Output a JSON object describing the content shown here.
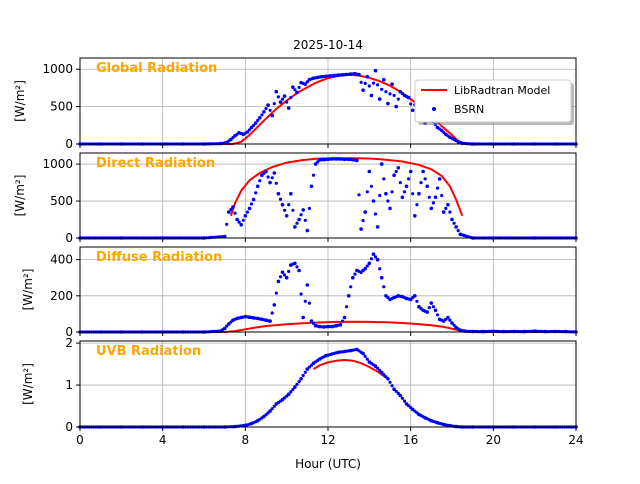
{
  "title": "2025-10-14",
  "xlabel": "Hour (UTC)",
  "colors": {
    "model": "#ff0000",
    "bsrn": "#0000ff",
    "panel_label": "#ffa500",
    "grid": "#b0b0b0"
  },
  "legend": {
    "items": [
      {
        "label": "LibRadtran Model",
        "style": "line",
        "color": "#ff0000"
      },
      {
        "label": "BSRN",
        "style": "dot",
        "color": "#0000ff"
      }
    ],
    "placement": "right of the Global Radiation panel"
  },
  "chart_data": [
    {
      "type": "line",
      "title": "Global Radiation",
      "ylabel": "[W/m²]",
      "xlim": [
        0,
        24
      ],
      "ylim": [
        0,
        1150
      ],
      "xticks": [
        0,
        4,
        8,
        12,
        16,
        20,
        24
      ],
      "yticks": [
        0,
        500,
        1000
      ],
      "grid": true,
      "legend": "right",
      "series": [
        {
          "name": "LibRadtran Model",
          "style": "line",
          "x": [
            0,
            7.4,
            7.8,
            8.2,
            8.6,
            9.0,
            9.5,
            10.0,
            10.5,
            11.0,
            11.5,
            12.0,
            12.5,
            13.0,
            13.5,
            14.0,
            14.5,
            15.0,
            15.5,
            16.0,
            16.5,
            17.0,
            17.5,
            18.0,
            18.3,
            18.6,
            24
          ],
          "y": [
            0,
            0,
            30,
            120,
            230,
            340,
            470,
            580,
            680,
            760,
            830,
            880,
            910,
            925,
            915,
            885,
            840,
            780,
            700,
            600,
            490,
            370,
            240,
            120,
            40,
            0,
            0
          ]
        },
        {
          "name": "BSRN",
          "style": "scatter",
          "x": [
            0,
            1,
            2,
            3,
            4,
            5,
            6,
            6.8,
            7.1,
            7.3,
            7.5,
            7.7,
            7.9,
            8.1,
            8.3,
            8.5,
            8.7,
            8.9,
            9.1,
            9.3,
            9.5,
            9.7,
            9.9,
            10.1,
            10.3,
            10.5,
            10.7,
            10.9,
            11.1,
            11.3,
            11.5,
            11.7,
            11.9,
            12.1,
            12.3,
            12.5,
            12.7,
            12.9,
            13.1,
            13.3,
            13.5,
            13.7,
            13.9,
            14.1,
            14.3,
            14.5,
            14.7,
            14.9,
            15.1,
            15.3,
            15.5,
            15.7,
            15.9,
            16.1,
            16.3,
            16.5,
            16.7,
            16.9,
            17.1,
            17.3,
            17.5,
            17.7,
            17.9,
            18.1,
            18.3,
            18.5,
            19,
            20,
            21,
            22,
            23,
            24
          ],
          "y": [
            0,
            0,
            0,
            0,
            0,
            0,
            0,
            5,
            20,
            60,
            110,
            150,
            130,
            160,
            220,
            280,
            350,
            430,
            520,
            380,
            700,
            560,
            640,
            480,
            760,
            690,
            820,
            800,
            860,
            880,
            890,
            900,
            905,
            910,
            915,
            920,
            925,
            930,
            935,
            940,
            930,
            720,
            900,
            650,
            980,
            600,
            860,
            540,
            800,
            500,
            700,
            650,
            620,
            450,
            600,
            350,
            280,
            420,
            300,
            220,
            180,
            130,
            90,
            60,
            30,
            10,
            0,
            0,
            0,
            0,
            0,
            0
          ]
        }
      ]
    },
    {
      "type": "line",
      "title": "Direct Radiation",
      "ylabel": "[W/m²]",
      "xlim": [
        0,
        24
      ],
      "ylim": [
        0,
        1150
      ],
      "xticks": [
        0,
        4,
        8,
        12,
        16,
        20,
        24
      ],
      "yticks": [
        0,
        500,
        1000
      ],
      "grid": true,
      "series": [
        {
          "name": "LibRadtran Model",
          "style": "line",
          "x": [
            7.3,
            7.5,
            7.8,
            8.2,
            8.7,
            9.3,
            10.0,
            10.8,
            11.6,
            12.4,
            13.2,
            14.0,
            14.8,
            15.6,
            16.4,
            17.0,
            17.5,
            17.9,
            18.2,
            18.5
          ],
          "y": [
            300,
            470,
            640,
            780,
            880,
            960,
            1020,
            1055,
            1075,
            1080,
            1080,
            1075,
            1060,
            1035,
            990,
            930,
            840,
            700,
            520,
            300
          ]
        },
        {
          "name": "BSRN",
          "style": "scatter",
          "x": [
            0,
            2,
            4,
            6,
            7.0,
            7.2,
            7.4,
            7.6,
            7.8,
            8.0,
            8.2,
            8.4,
            8.6,
            8.8,
            9.0,
            9.2,
            9.4,
            9.6,
            9.8,
            10.0,
            10.2,
            10.4,
            10.6,
            10.8,
            11.0,
            11.2,
            11.4,
            11.6,
            11.8,
            12.0,
            12.2,
            12.4,
            12.6,
            12.8,
            13.0,
            13.2,
            13.4,
            13.6,
            13.8,
            14.0,
            14.2,
            14.4,
            14.6,
            14.8,
            15.0,
            15.2,
            15.4,
            15.6,
            15.8,
            16.0,
            16.2,
            16.4,
            16.6,
            16.8,
            17.0,
            17.2,
            17.4,
            17.6,
            17.8,
            18.0,
            18.2,
            18.4,
            19,
            20,
            22,
            24
          ],
          "y": [
            0,
            0,
            0,
            0,
            20,
            350,
            420,
            250,
            180,
            300,
            400,
            520,
            700,
            850,
            900,
            750,
            880,
            600,
            450,
            300,
            600,
            150,
            250,
            380,
            100,
            700,
            1000,
            1060,
            1060,
            1065,
            1070,
            1070,
            1070,
            1065,
            1065,
            1060,
            1050,
            120,
            350,
            900,
            500,
            150,
            1000,
            600,
            400,
            850,
            950,
            550,
            700,
            900,
            300,
            600,
            900,
            700,
            400,
            550,
            800,
            350,
            450,
            250,
            150,
            50,
            0,
            0,
            0,
            0
          ]
        }
      ]
    },
    {
      "type": "line",
      "title": "Diffuse Radiation",
      "ylabel": "[W/m²]",
      "xlim": [
        0,
        24
      ],
      "ylim": [
        0,
        470
      ],
      "xticks": [
        0,
        4,
        8,
        12,
        16,
        20,
        24
      ],
      "yticks": [
        0,
        200,
        400
      ],
      "grid": true,
      "series": [
        {
          "name": "LibRadtran Model",
          "style": "line",
          "x": [
            0,
            7.0,
            7.5,
            8.0,
            8.5,
            9.0,
            10.0,
            11.0,
            12.0,
            13.0,
            14.0,
            15.0,
            16.0,
            17.0,
            17.6,
            18.0,
            18.4,
            18.7,
            24
          ],
          "y": [
            0,
            0,
            5,
            15,
            25,
            33,
            43,
            50,
            55,
            57,
            56,
            53,
            47,
            37,
            28,
            18,
            8,
            0,
            0
          ]
        },
        {
          "name": "BSRN",
          "style": "scatter",
          "x": [
            0,
            1,
            2,
            3,
            4,
            5,
            6,
            6.8,
            7.0,
            7.2,
            7.4,
            7.6,
            7.8,
            8.0,
            8.2,
            8.4,
            8.6,
            8.8,
            9.0,
            9.2,
            9.4,
            9.6,
            9.8,
            10.0,
            10.2,
            10.4,
            10.6,
            10.8,
            11.0,
            11.2,
            11.4,
            11.6,
            11.8,
            12.0,
            12.2,
            12.4,
            12.6,
            12.8,
            13.0,
            13.2,
            13.4,
            13.6,
            13.8,
            14.0,
            14.2,
            14.4,
            14.6,
            14.8,
            15.0,
            15.2,
            15.4,
            15.6,
            15.8,
            16.0,
            16.2,
            16.4,
            16.6,
            16.8,
            17.0,
            17.2,
            17.4,
            17.6,
            17.8,
            18.0,
            18.2,
            18.4,
            18.6,
            19,
            19.5,
            20,
            20.5,
            21,
            21.5,
            22,
            22.5,
            23,
            23.5,
            24
          ],
          "y": [
            0,
            0,
            0,
            0,
            0,
            0,
            0,
            5,
            20,
            45,
            65,
            75,
            80,
            85,
            82,
            78,
            75,
            70,
            65,
            60,
            150,
            280,
            330,
            300,
            370,
            380,
            340,
            80,
            260,
            60,
            35,
            30,
            28,
            30,
            30,
            35,
            40,
            80,
            200,
            300,
            340,
            330,
            350,
            380,
            430,
            400,
            300,
            200,
            180,
            190,
            200,
            195,
            185,
            180,
            200,
            140,
            120,
            110,
            160,
            120,
            70,
            60,
            80,
            50,
            25,
            10,
            5,
            3,
            2,
            4,
            2,
            3,
            2,
            5,
            2,
            3,
            2,
            0
          ]
        }
      ]
    },
    {
      "type": "line",
      "title": "UVB Radiation",
      "ylabel": "[W/m²]",
      "xlim": [
        0,
        24
      ],
      "ylim": [
        0,
        2.05
      ],
      "xticks": [
        0,
        4,
        8,
        12,
        16,
        20,
        24
      ],
      "yticks": [
        0,
        1,
        2
      ],
      "grid": true,
      "series": [
        {
          "name": "LibRadtran Model",
          "style": "line",
          "x": [
            11.3,
            11.6,
            12.0,
            12.4,
            12.8,
            13.2,
            13.6,
            14.0,
            14.4,
            14.8
          ],
          "y": [
            1.38,
            1.47,
            1.54,
            1.58,
            1.6,
            1.58,
            1.52,
            1.43,
            1.32,
            1.18
          ]
        },
        {
          "name": "BSRN",
          "style": "scatter",
          "x": [
            0,
            1,
            2,
            3,
            4,
            5,
            6,
            7.0,
            7.5,
            8.0,
            8.3,
            8.6,
            8.9,
            9.2,
            9.5,
            9.8,
            10.1,
            10.4,
            10.7,
            11.0,
            11.3,
            11.6,
            11.9,
            12.2,
            12.5,
            12.8,
            13.1,
            13.4,
            13.7,
            14.0,
            14.3,
            14.6,
            14.9,
            15.2,
            15.5,
            15.8,
            16.1,
            16.4,
            16.7,
            17.0,
            17.3,
            17.6,
            17.9,
            18.2,
            18.5,
            19,
            20,
            21,
            22,
            23,
            24
          ],
          "y": [
            0,
            0,
            0,
            0,
            0,
            0,
            0,
            0,
            0.01,
            0.04,
            0.08,
            0.15,
            0.25,
            0.38,
            0.55,
            0.65,
            0.78,
            0.95,
            1.15,
            1.38,
            1.52,
            1.62,
            1.7,
            1.74,
            1.78,
            1.8,
            1.82,
            1.85,
            1.75,
            1.55,
            1.45,
            1.3,
            1.15,
            0.9,
            0.75,
            0.55,
            0.42,
            0.3,
            0.22,
            0.15,
            0.1,
            0.06,
            0.03,
            0.01,
            0,
            0,
            0,
            0,
            0,
            0,
            0
          ]
        }
      ]
    }
  ]
}
